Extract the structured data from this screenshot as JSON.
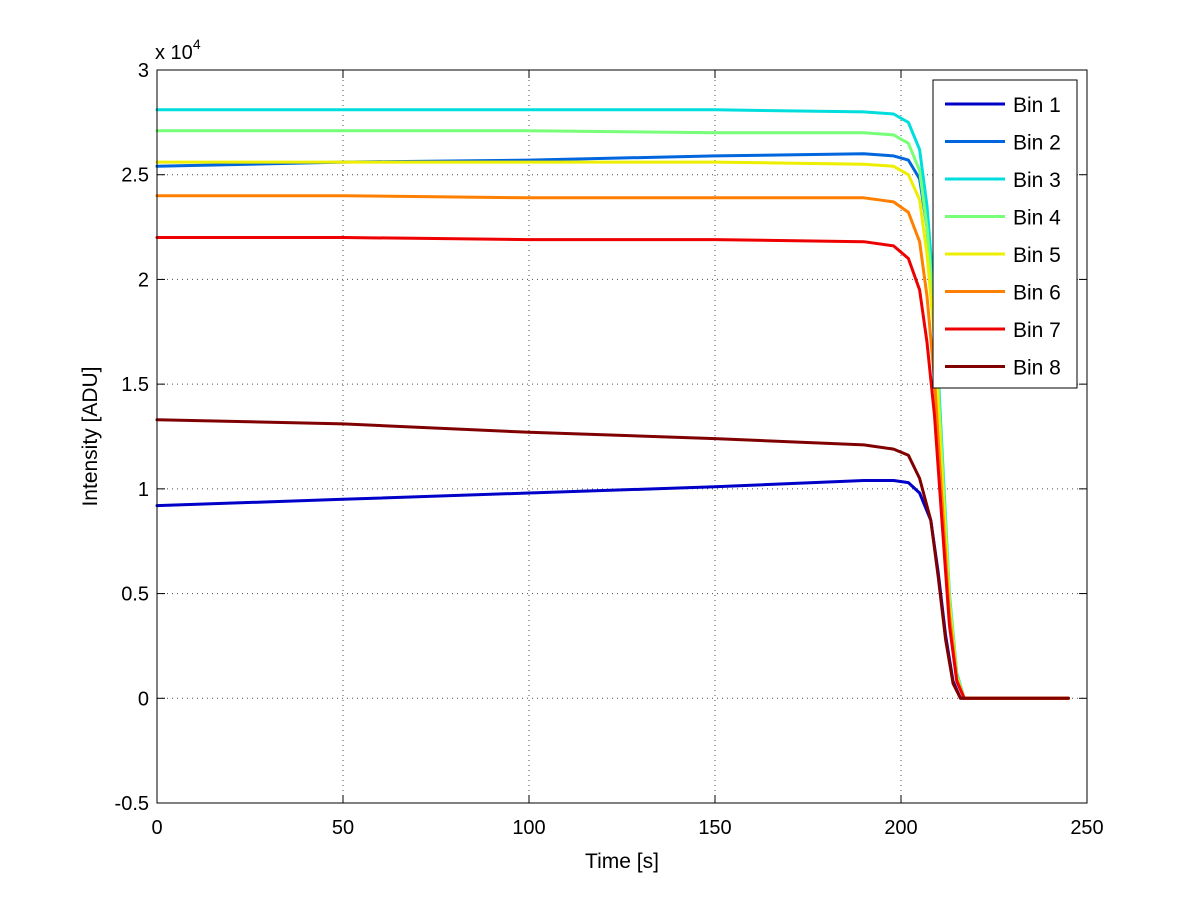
{
  "chart_data": {
    "type": "line",
    "xlabel": "Time [s]",
    "ylabel": "Intensity [ADU]",
    "y_multiplier": "x 10",
    "y_multiplier_exp": "4",
    "xlim": [
      0,
      250
    ],
    "ylim": [
      -0.5,
      3
    ],
    "xticks": [
      "0",
      "50",
      "100",
      "150",
      "200",
      "250"
    ],
    "yticks": [
      "-0.5",
      "0",
      "0.5",
      "1",
      "1.5",
      "2",
      "2.5",
      "3"
    ],
    "xtick_values": [
      0,
      50,
      100,
      150,
      200,
      250
    ],
    "ytick_values": [
      -0.5,
      0,
      0.5,
      1,
      1.5,
      2,
      2.5,
      3
    ],
    "grid": true,
    "legend_position": "top-right",
    "series": [
      {
        "name": "Bin 1",
        "color": "#0000c8",
        "x": [
          0,
          50,
          100,
          150,
          190,
          198,
          202,
          205,
          208,
          210,
          212,
          214,
          216,
          220,
          245
        ],
        "y": [
          0.92,
          0.95,
          0.98,
          1.01,
          1.04,
          1.04,
          1.03,
          0.98,
          0.85,
          0.6,
          0.3,
          0.08,
          0.0,
          0.0,
          0.0
        ]
      },
      {
        "name": "Bin 2",
        "color": "#0066dd",
        "x": [
          0,
          50,
          100,
          150,
          190,
          198,
          202,
          205,
          207,
          209,
          211,
          213,
          215,
          217,
          220,
          245
        ],
        "y": [
          2.54,
          2.56,
          2.57,
          2.59,
          2.6,
          2.59,
          2.57,
          2.48,
          2.25,
          1.8,
          1.1,
          0.45,
          0.1,
          0.0,
          0.0,
          0.0
        ]
      },
      {
        "name": "Bin 3",
        "color": "#00dddd",
        "x": [
          0,
          50,
          100,
          150,
          190,
          198,
          202,
          205,
          207,
          209,
          211,
          213,
          215,
          217,
          220,
          245
        ],
        "y": [
          2.81,
          2.81,
          2.81,
          2.81,
          2.8,
          2.79,
          2.75,
          2.62,
          2.35,
          1.9,
          1.2,
          0.5,
          0.12,
          0.0,
          0.0,
          0.0
        ]
      },
      {
        "name": "Bin 4",
        "color": "#77ff77",
        "x": [
          0,
          50,
          100,
          150,
          190,
          198,
          202,
          205,
          207,
          209,
          211,
          213,
          215,
          217,
          220,
          245
        ],
        "y": [
          2.71,
          2.71,
          2.71,
          2.7,
          2.7,
          2.69,
          2.65,
          2.52,
          2.25,
          1.82,
          1.15,
          0.48,
          0.11,
          0.0,
          0.0,
          0.0
        ]
      },
      {
        "name": "Bin 5",
        "color": "#eeee00",
        "x": [
          0,
          50,
          100,
          150,
          190,
          198,
          202,
          205,
          207,
          209,
          211,
          213,
          215,
          217,
          220,
          245
        ],
        "y": [
          2.56,
          2.56,
          2.56,
          2.56,
          2.55,
          2.54,
          2.5,
          2.38,
          2.12,
          1.72,
          1.08,
          0.45,
          0.1,
          0.0,
          0.0,
          0.0
        ]
      },
      {
        "name": "Bin 6",
        "color": "#ff7f00",
        "x": [
          0,
          50,
          100,
          150,
          190,
          198,
          202,
          205,
          207,
          209,
          211,
          213,
          215,
          217,
          220,
          245
        ],
        "y": [
          2.4,
          2.4,
          2.39,
          2.39,
          2.39,
          2.37,
          2.32,
          2.18,
          1.92,
          1.52,
          0.95,
          0.4,
          0.09,
          0.0,
          0.0,
          0.0
        ]
      },
      {
        "name": "Bin 7",
        "color": "#ee0000",
        "x": [
          0,
          50,
          100,
          150,
          190,
          198,
          202,
          205,
          207,
          209,
          211,
          213,
          215,
          217,
          220,
          245
        ],
        "y": [
          2.2,
          2.2,
          2.19,
          2.19,
          2.18,
          2.16,
          2.1,
          1.95,
          1.7,
          1.35,
          0.85,
          0.35,
          0.08,
          0.0,
          0.0,
          0.0
        ]
      },
      {
        "name": "Bin 8",
        "color": "#800000",
        "x": [
          0,
          50,
          100,
          150,
          190,
          198,
          202,
          205,
          208,
          210,
          212,
          214,
          216,
          220,
          245
        ],
        "y": [
          1.33,
          1.31,
          1.27,
          1.24,
          1.21,
          1.19,
          1.16,
          1.05,
          0.85,
          0.58,
          0.28,
          0.07,
          0.0,
          0.0,
          0.0
        ]
      }
    ]
  }
}
